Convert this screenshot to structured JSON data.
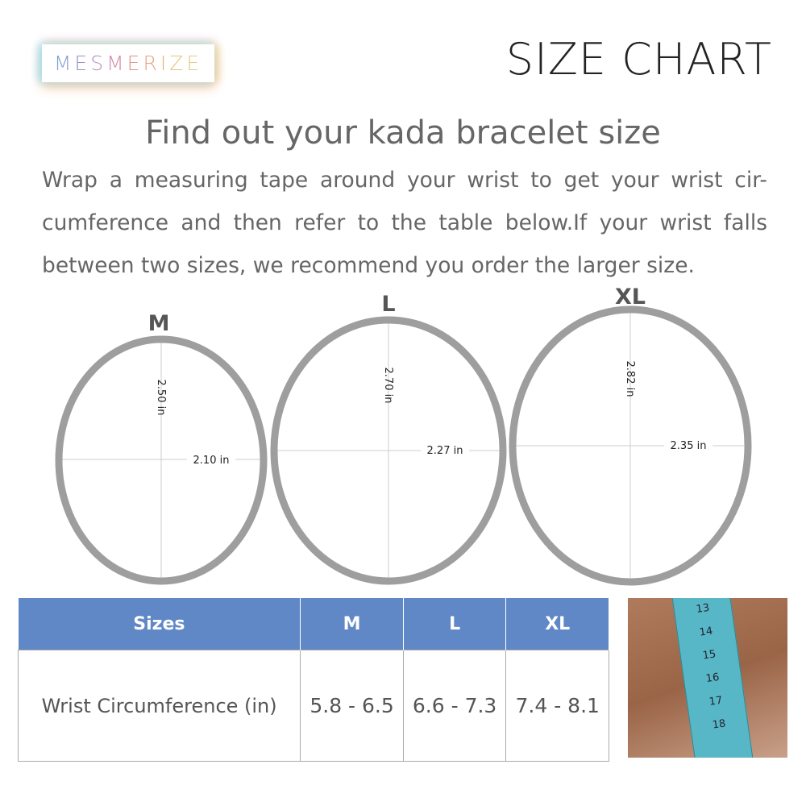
{
  "logo": "MESMERIZE",
  "title": "SIZE CHART",
  "heading": "Find out your kada bracelet size",
  "description": "Wrap a measuring tape around your wrist to get your wrist cir-cumference and then refer to the table below.If your wrist falls between two sizes, we recommend you order the larger size.",
  "rings": [
    {
      "size": "M",
      "height": "2.50 in",
      "width": "2.10 in"
    },
    {
      "size": "L",
      "height": "2.70 in",
      "width": "2.27 in"
    },
    {
      "size": "XL",
      "height": "2.82 in",
      "width": "2.35 in"
    }
  ],
  "table": {
    "headers": [
      "Sizes",
      "M",
      "L",
      "XL"
    ],
    "row_label": "Wrist Circumference (in)",
    "values": [
      "5.8 - 6.5",
      "6.6 - 7.3",
      "7.4 - 8.1"
    ]
  },
  "photo": {
    "tape_numbers": [
      "13",
      "14",
      "15",
      "16",
      "17",
      "18"
    ]
  },
  "colors": {
    "header": "#6087c6",
    "ring": "#9e9e9e"
  }
}
